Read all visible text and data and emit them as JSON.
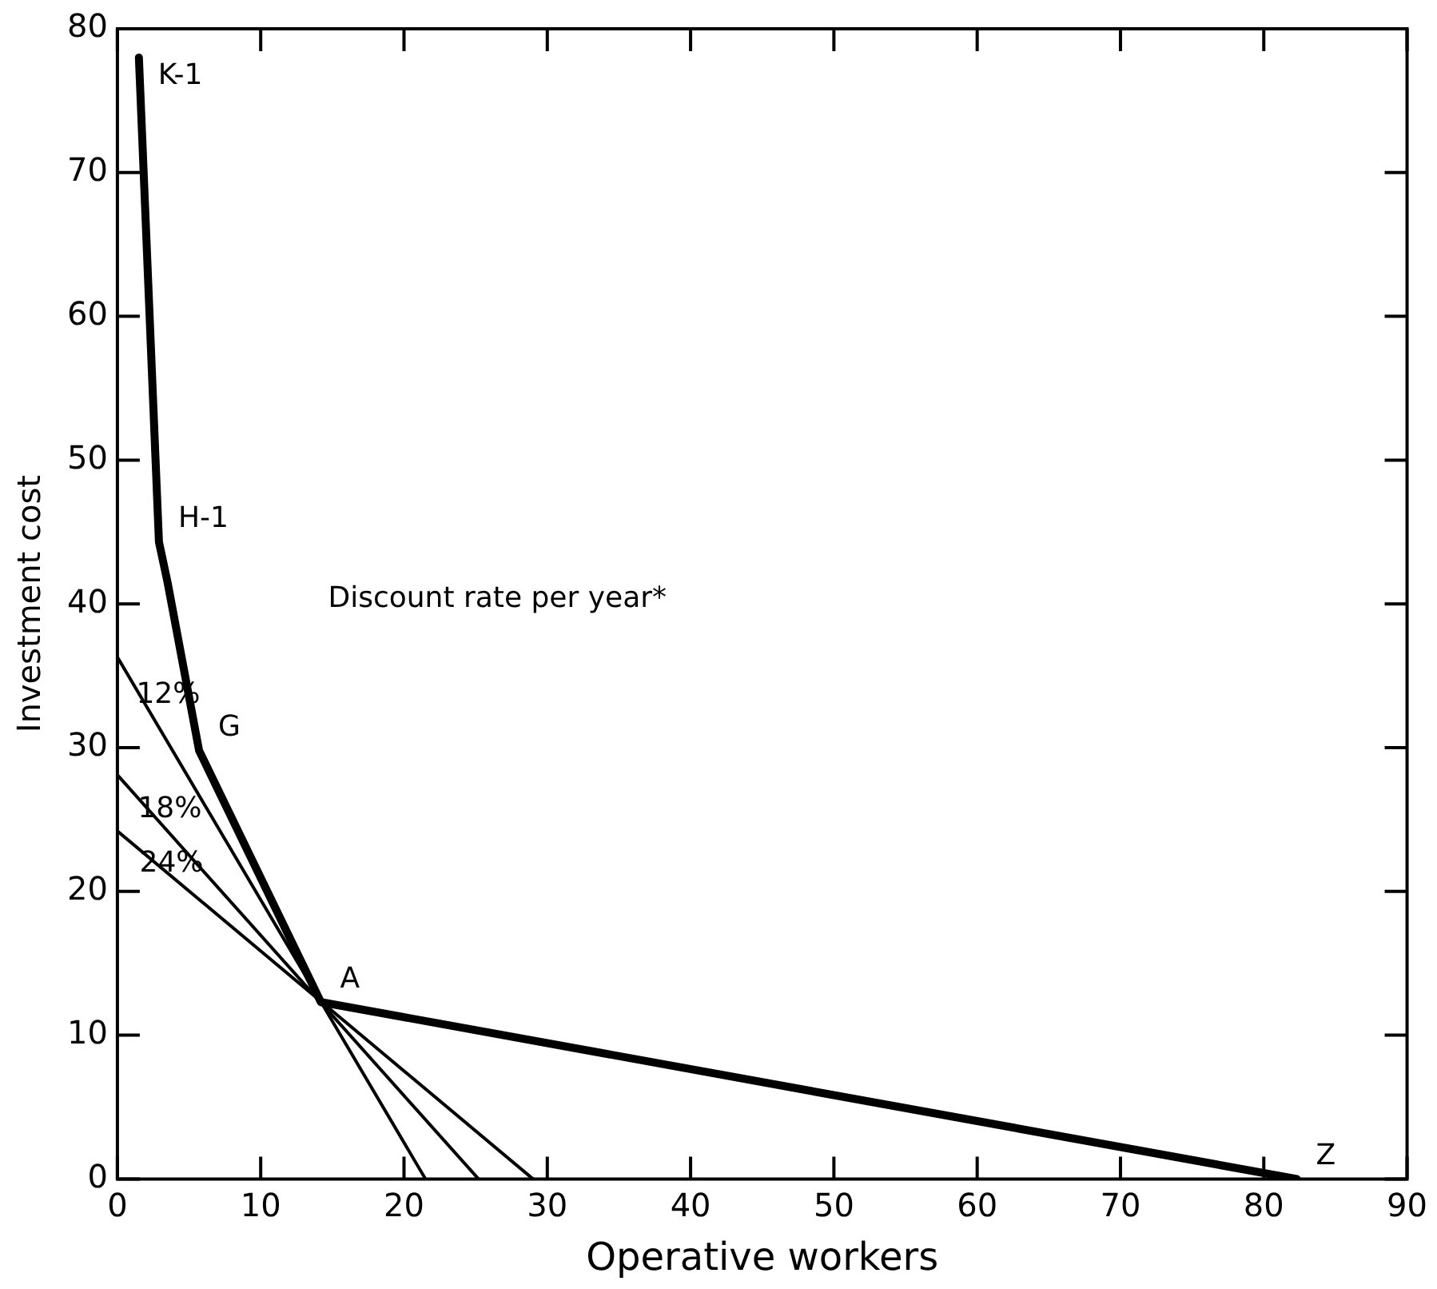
{
  "chart_data": {
    "type": "line",
    "xlabel": "Operative workers",
    "ylabel": "Investment cost",
    "legend_title": "Discount rate per year*",
    "xlim": [
      0,
      90
    ],
    "xticks": [
      0,
      10,
      20,
      30,
      40,
      50,
      60,
      70,
      80,
      90
    ],
    "ylim": [
      0,
      80
    ],
    "yticks": [
      0,
      10,
      20,
      30,
      40,
      50,
      60,
      70,
      80
    ],
    "series": [
      {
        "color": "#000000",
        "x": [
          1.5,
          2.9,
          3.5,
          5.7,
          14.2,
          82.3
        ],
        "values": [
          78,
          44.3,
          41.5,
          29.8,
          12.3,
          0
        ]
      },
      {
        "name": "12%",
        "color": "#000000",
        "x": [
          0,
          21.5
        ],
        "values": [
          36.3,
          0
        ]
      },
      {
        "name": "18%",
        "color": "#000000",
        "x": [
          0,
          25.2
        ],
        "values": [
          28.1,
          0
        ]
      },
      {
        "name": "24%",
        "color": "#000000",
        "x": [
          0,
          29
        ],
        "values": [
          24.2,
          0
        ]
      }
    ],
    "annotations": [
      {
        "text": "K-1",
        "x": 1.5,
        "y": 78
      },
      {
        "text": "H-1",
        "x": 2.9,
        "y": 44.3
      },
      {
        "text": "G",
        "x": 5.7,
        "y": 29.8
      },
      {
        "text": "A",
        "x": 14.2,
        "y": 12.3
      },
      {
        "text": "Z",
        "x": 82.3,
        "y": 0
      }
    ],
    "marker": "none",
    "line_style": "solid",
    "grid": false,
    "legend": false
  }
}
